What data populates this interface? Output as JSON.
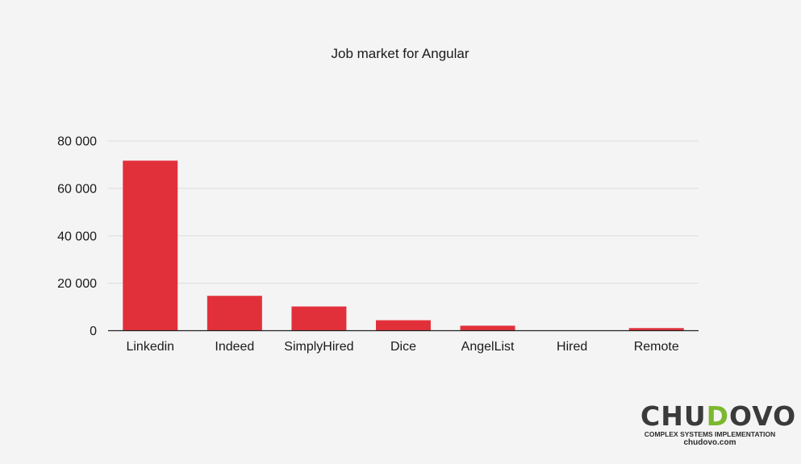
{
  "chart_data": {
    "type": "bar",
    "title": "Job market for Angular",
    "xlabel": "",
    "ylabel": "",
    "categories": [
      "Linkedin",
      "Indeed",
      "SimplyHired",
      "Dice",
      "AngelList",
      "Hired",
      "Remote"
    ],
    "values": [
      71700,
      14700,
      10200,
      4400,
      2100,
      100,
      1100
    ],
    "ylim": [
      0,
      80000
    ],
    "yticks": [
      0,
      20000,
      40000,
      60000,
      80000
    ],
    "ytick_labels": [
      "0",
      "20 000",
      "40 000",
      "60 000",
      "80 000"
    ],
    "grid": true,
    "legend": "none",
    "colors": {
      "bar": "#e2303a",
      "grid": "#dcdcdc",
      "axis": "#222222",
      "background": "#f4f4f4"
    }
  },
  "brand": {
    "logo_prefix": "CHU",
    "logo_accent": "D",
    "logo_suffix": "OVO",
    "tagline": "COMPLEX SYSTEMS IMPLEMENTATION",
    "url": "chudovo.com"
  }
}
